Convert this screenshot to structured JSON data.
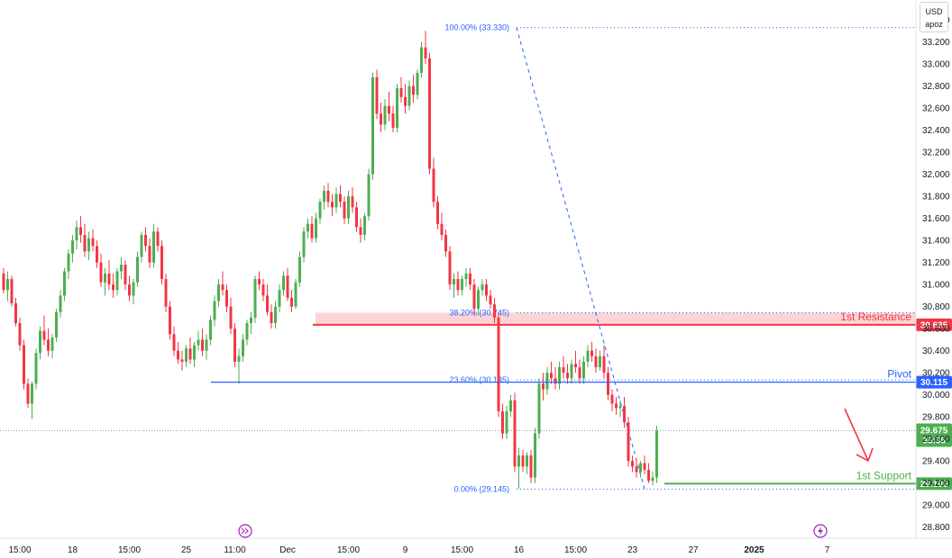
{
  "currency": {
    "label": "USD",
    "sub": "apoz"
  },
  "chart_data": {
    "type": "candlestick",
    "y_range": [
      28.7,
      33.58
    ],
    "y_ticks": [
      "33.400",
      "33.200",
      "33.000",
      "32.800",
      "32.600",
      "32.400",
      "32.200",
      "32.000",
      "31.800",
      "31.600",
      "31.400",
      "31.200",
      "31.000",
      "30.800",
      "30.600",
      "30.400",
      "30.200",
      "30.000",
      "29.800",
      "29.600",
      "29.400",
      "29.200",
      "29.000",
      "28.800"
    ],
    "x_ticks": [
      {
        "label": "15:00",
        "index": 4
      },
      {
        "label": "18",
        "index": 17
      },
      {
        "label": "15:00",
        "index": 31
      },
      {
        "label": "25",
        "index": 45
      },
      {
        "label": "11:00",
        "index": 57
      },
      {
        "label": "Dec",
        "index": 70
      },
      {
        "label": "15:00",
        "index": 85
      },
      {
        "label": "9",
        "index": 99
      },
      {
        "label": "15:00",
        "index": 113
      },
      {
        "label": "16",
        "index": 127
      },
      {
        "label": "15:00",
        "index": 141
      },
      {
        "label": "23",
        "index": 155
      },
      {
        "label": "27",
        "index": 170
      },
      {
        "label": "2025",
        "index": 185
      },
      {
        "label": "7",
        "index": 203
      }
    ],
    "candles": [
      [
        31.1,
        31.15,
        30.92,
        30.95
      ],
      [
        30.95,
        31.12,
        30.85,
        31.05
      ],
      [
        31.05,
        31.08,
        30.8,
        30.83
      ],
      [
        30.83,
        30.88,
        30.62,
        30.65
      ],
      [
        30.65,
        30.7,
        30.4,
        30.45
      ],
      [
        30.45,
        30.5,
        30.05,
        30.1
      ],
      [
        30.1,
        30.15,
        29.88,
        29.92
      ],
      [
        29.92,
        30.12,
        29.78,
        30.1
      ],
      [
        30.1,
        30.42,
        30.05,
        30.38
      ],
      [
        30.38,
        30.62,
        30.32,
        30.58
      ],
      [
        30.58,
        30.72,
        30.45,
        30.5
      ],
      [
        30.5,
        30.6,
        30.35,
        30.4
      ],
      [
        30.4,
        30.55,
        30.33,
        30.52
      ],
      [
        30.52,
        30.78,
        30.48,
        30.75
      ],
      [
        30.75,
        30.95,
        30.7,
        30.9
      ],
      [
        30.9,
        31.15,
        30.85,
        31.12
      ],
      [
        31.12,
        31.32,
        31.05,
        31.28
      ],
      [
        31.28,
        31.45,
        31.2,
        31.4
      ],
      [
        31.4,
        31.58,
        31.32,
        31.52
      ],
      [
        31.52,
        31.62,
        31.38,
        31.45
      ],
      [
        31.45,
        31.55,
        31.25,
        31.3
      ],
      [
        31.3,
        31.48,
        31.22,
        31.42
      ],
      [
        31.42,
        31.5,
        31.3,
        31.35
      ],
      [
        31.35,
        31.4,
        31.15,
        31.2
      ],
      [
        31.2,
        31.28,
        30.98,
        31.02
      ],
      [
        31.02,
        31.15,
        30.9,
        31.1
      ],
      [
        31.1,
        31.22,
        30.95,
        31.0
      ],
      [
        31.0,
        31.1,
        30.88,
        30.95
      ],
      [
        30.95,
        31.15,
        30.9,
        31.12
      ],
      [
        31.12,
        31.25,
        31.05,
        31.18
      ],
      [
        31.18,
        31.22,
        30.95,
        31.0
      ],
      [
        31.0,
        31.08,
        30.85,
        30.9
      ],
      [
        30.9,
        31.05,
        30.82,
        31.02
      ],
      [
        31.02,
        31.3,
        30.98,
        31.25
      ],
      [
        31.25,
        31.48,
        31.2,
        31.45
      ],
      [
        31.45,
        31.52,
        31.3,
        31.35
      ],
      [
        31.35,
        31.42,
        31.15,
        31.2
      ],
      [
        31.2,
        31.55,
        31.15,
        31.48
      ],
      [
        31.48,
        31.52,
        31.3,
        31.35
      ],
      [
        31.35,
        31.4,
        31.0,
        31.05
      ],
      [
        31.05,
        31.1,
        30.75,
        30.8
      ],
      [
        30.8,
        30.85,
        30.5,
        30.55
      ],
      [
        30.55,
        30.62,
        30.35,
        30.4
      ],
      [
        30.4,
        30.48,
        30.28,
        30.32
      ],
      [
        30.32,
        30.4,
        30.22,
        30.3
      ],
      [
        30.3,
        30.45,
        30.25,
        30.42
      ],
      [
        30.42,
        30.52,
        30.28,
        30.32
      ],
      [
        30.32,
        30.48,
        30.25,
        30.45
      ],
      [
        30.45,
        30.58,
        30.4,
        30.5
      ],
      [
        30.5,
        30.6,
        30.35,
        30.4
      ],
      [
        30.4,
        30.55,
        30.32,
        30.5
      ],
      [
        30.5,
        30.72,
        30.45,
        30.68
      ],
      [
        30.68,
        30.9,
        30.62,
        30.85
      ],
      [
        30.85,
        31.05,
        30.8,
        31.0
      ],
      [
        31.0,
        31.12,
        30.9,
        30.95
      ],
      [
        30.95,
        31.0,
        30.75,
        30.8
      ],
      [
        30.8,
        30.88,
        30.55,
        30.6
      ],
      [
        30.6,
        30.65,
        30.25,
        30.3
      ],
      [
        30.3,
        30.42,
        30.1,
        30.35
      ],
      [
        30.35,
        30.55,
        30.3,
        30.5
      ],
      [
        30.5,
        30.68,
        30.45,
        30.65
      ],
      [
        30.65,
        30.75,
        30.55,
        30.7
      ],
      [
        30.7,
        31.08,
        30.65,
        31.05
      ],
      [
        31.05,
        31.12,
        30.95,
        31.0
      ],
      [
        31.0,
        31.05,
        30.85,
        30.9
      ],
      [
        30.9,
        31.0,
        30.72,
        30.75
      ],
      [
        30.75,
        30.82,
        30.6,
        30.65
      ],
      [
        30.65,
        30.85,
        30.6,
        30.8
      ],
      [
        30.8,
        31.0,
        30.75,
        30.95
      ],
      [
        30.95,
        31.12,
        30.9,
        31.08
      ],
      [
        31.08,
        31.15,
        30.85,
        30.88
      ],
      [
        30.88,
        30.95,
        30.75,
        30.8
      ],
      [
        30.8,
        31.05,
        30.78,
        31.02
      ],
      [
        31.02,
        31.3,
        30.98,
        31.25
      ],
      [
        31.25,
        31.52,
        31.2,
        31.48
      ],
      [
        31.48,
        31.6,
        31.42,
        31.55
      ],
      [
        31.55,
        31.62,
        31.38,
        31.42
      ],
      [
        31.42,
        31.65,
        31.38,
        31.6
      ],
      [
        31.6,
        31.78,
        31.55,
        31.75
      ],
      [
        31.75,
        31.9,
        31.68,
        31.85
      ],
      [
        31.85,
        31.92,
        31.7,
        31.75
      ],
      [
        31.75,
        31.82,
        31.62,
        31.7
      ],
      [
        31.7,
        31.88,
        31.65,
        31.82
      ],
      [
        31.82,
        31.9,
        31.7,
        31.75
      ],
      [
        31.75,
        31.8,
        31.55,
        31.6
      ],
      [
        31.6,
        31.85,
        31.55,
        31.8
      ],
      [
        31.8,
        31.88,
        31.65,
        31.7
      ],
      [
        31.7,
        31.75,
        31.48,
        31.52
      ],
      [
        31.52,
        31.6,
        31.38,
        31.45
      ],
      [
        31.45,
        31.65,
        31.4,
        31.62
      ],
      [
        31.62,
        32.05,
        31.58,
        32.0
      ],
      [
        32.0,
        32.92,
        31.95,
        32.88
      ],
      [
        32.88,
        32.95,
        32.5,
        32.55
      ],
      [
        32.55,
        32.65,
        32.38,
        32.45
      ],
      [
        32.45,
        32.68,
        32.4,
        32.62
      ],
      [
        32.62,
        32.75,
        32.48,
        32.55
      ],
      [
        32.55,
        32.62,
        32.38,
        32.42
      ],
      [
        32.42,
        32.82,
        32.38,
        32.78
      ],
      [
        32.78,
        32.88,
        32.65,
        32.7
      ],
      [
        32.7,
        32.82,
        32.55,
        32.62
      ],
      [
        32.62,
        32.85,
        32.58,
        32.8
      ],
      [
        32.8,
        32.9,
        32.65,
        32.72
      ],
      [
        32.72,
        32.95,
        32.68,
        32.92
      ],
      [
        32.92,
        33.2,
        32.88,
        33.15
      ],
      [
        33.15,
        33.3,
        33.0,
        33.05
      ],
      [
        33.05,
        33.1,
        32.0,
        32.05
      ],
      [
        32.05,
        32.15,
        31.7,
        31.75
      ],
      [
        31.75,
        31.8,
        31.5,
        31.55
      ],
      [
        31.55,
        31.65,
        31.4,
        31.45
      ],
      [
        31.45,
        31.5,
        31.25,
        31.3
      ],
      [
        31.3,
        31.35,
        30.95,
        31.0
      ],
      [
        31.0,
        31.1,
        30.88,
        31.05
      ],
      [
        31.05,
        31.12,
        30.9,
        30.95
      ],
      [
        30.95,
        31.08,
        30.9,
        31.05
      ],
      [
        31.05,
        31.15,
        30.98,
        31.1
      ],
      [
        31.1,
        31.15,
        30.95,
        31.0
      ],
      [
        31.0,
        31.05,
        30.72,
        30.78
      ],
      [
        30.78,
        30.98,
        30.72,
        30.95
      ],
      [
        30.95,
        31.05,
        30.9,
        31.0
      ],
      [
        31.0,
        31.05,
        30.85,
        30.9
      ],
      [
        30.9,
        30.95,
        30.78,
        30.82
      ],
      [
        30.82,
        30.88,
        30.65,
        30.7
      ],
      [
        30.7,
        30.75,
        29.8,
        29.85
      ],
      [
        29.85,
        29.92,
        29.6,
        29.65
      ],
      [
        29.65,
        29.9,
        29.6,
        29.85
      ],
      [
        29.85,
        30.0,
        29.8,
        29.95
      ],
      [
        29.95,
        30.02,
        29.3,
        29.35
      ],
      [
        29.35,
        29.52,
        29.15,
        29.45
      ],
      [
        29.45,
        29.5,
        29.3,
        29.35
      ],
      [
        29.35,
        29.48,
        29.28,
        29.45
      ],
      [
        29.45,
        29.5,
        29.2,
        29.25
      ],
      [
        29.25,
        29.7,
        29.2,
        29.65
      ],
      [
        29.65,
        30.15,
        29.6,
        30.1
      ],
      [
        30.1,
        30.2,
        29.95,
        30.05
      ],
      [
        30.05,
        30.25,
        30.0,
        30.2
      ],
      [
        30.2,
        30.3,
        30.1,
        30.15
      ],
      [
        30.15,
        30.25,
        30.05,
        30.1
      ],
      [
        30.1,
        30.3,
        30.05,
        30.25
      ],
      [
        30.25,
        30.35,
        30.15,
        30.2
      ],
      [
        30.2,
        30.28,
        30.1,
        30.15
      ],
      [
        30.15,
        30.32,
        30.1,
        30.28
      ],
      [
        30.28,
        30.4,
        30.2,
        30.25
      ],
      [
        30.25,
        30.32,
        30.1,
        30.15
      ],
      [
        30.15,
        30.35,
        30.1,
        30.3
      ],
      [
        30.3,
        30.45,
        30.25,
        30.4
      ],
      [
        30.4,
        30.48,
        30.3,
        30.35
      ],
      [
        30.35,
        30.42,
        30.2,
        30.25
      ],
      [
        30.25,
        30.4,
        30.22,
        30.35
      ],
      [
        30.35,
        30.45,
        30.15,
        30.2
      ],
      [
        30.2,
        30.25,
        29.95,
        30.0
      ],
      [
        30.0,
        30.05,
        29.85,
        29.92
      ],
      [
        29.92,
        29.98,
        29.82,
        29.88
      ],
      [
        29.88,
        29.95,
        29.8,
        29.9
      ],
      [
        29.9,
        29.98,
        29.7,
        29.75
      ],
      [
        29.75,
        29.8,
        29.35,
        29.4
      ],
      [
        29.4,
        29.45,
        29.3,
        29.35
      ],
      [
        29.35,
        29.42,
        29.25,
        29.3
      ],
      [
        29.3,
        29.4,
        29.25,
        29.38
      ],
      [
        29.38,
        29.45,
        29.28,
        29.32
      ],
      [
        29.32,
        29.38,
        29.2,
        29.22
      ],
      [
        29.22,
        29.3,
        29.18,
        29.25
      ],
      [
        29.25,
        29.72,
        29.2,
        29.675
      ]
    ],
    "fib_levels": [
      {
        "label": "100.00% (33.330)",
        "value": 33.33
      },
      {
        "label": "38.20% (30.745)",
        "value": 30.745
      },
      {
        "label": "23.60% (30.135)",
        "value": 30.135
      },
      {
        "label": "0.00% (29.145)",
        "value": 29.145
      }
    ],
    "levels": [
      {
        "name": "1st Resistance",
        "value": 30.635,
        "tag": "30.635",
        "color": "#f23645"
      },
      {
        "name": "Pivot",
        "value": 30.115,
        "tag": "30.115",
        "color": "#2962ff"
      },
      {
        "name": "1st Support",
        "value": 29.195,
        "tag": "29.195",
        "color": "#4caf50"
      }
    ],
    "last_price": {
      "value": 29.675,
      "tag": "29.675",
      "countdown": "35:36"
    },
    "colors": {
      "up": "#4caf50",
      "down": "#f23645",
      "fib": "#2962ff",
      "grid": "#f0f3fa",
      "text": "#131722"
    }
  }
}
